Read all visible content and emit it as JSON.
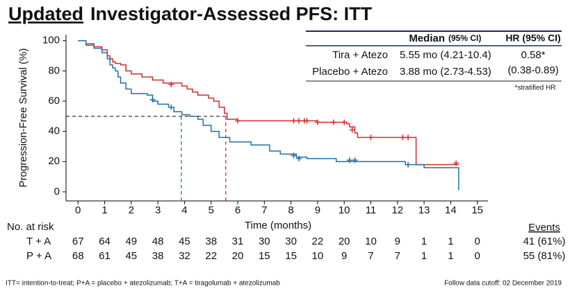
{
  "chart_data": {
    "type": "step",
    "title_emphasis": "Updated",
    "title": "Investigator-Assessed PFS: ITT",
    "ylabel": "Progression-Free Survival (%)",
    "xlabel": "Time (months)",
    "xlim": [
      -0.45,
      15.4
    ],
    "ylim": [
      -6,
      104
    ],
    "xticks": [
      0,
      1,
      2,
      3,
      4,
      5,
      6,
      7,
      8,
      9,
      10,
      11,
      12,
      13,
      14,
      15
    ],
    "yticks": [
      0,
      20,
      40,
      60,
      80,
      100
    ],
    "median_y": 50,
    "series": [
      {
        "name": "Tira + Atezo",
        "color": "#d42b2b",
        "median": 5.55,
        "median_text": "5.55 mo (4.21-10.4)",
        "hr": "0.58*",
        "hr_ci": "(0.38-0.89)",
        "risk_label": "T + A",
        "events": "41 (61%)",
        "at_risk": [
          67,
          64,
          49,
          48,
          45,
          38,
          31,
          30,
          30,
          22,
          20,
          10,
          9,
          1,
          1,
          0
        ],
        "x": [
          0,
          0.3,
          0.6,
          0.9,
          1.1,
          1.2,
          1.3,
          1.4,
          1.6,
          1.8,
          2.0,
          2.4,
          2.8,
          3.2,
          3.9,
          4.1,
          4.3,
          4.5,
          4.9,
          5.1,
          5.3,
          5.5,
          5.6,
          6.0,
          9.0,
          10.1,
          10.2,
          10.4,
          10.5,
          12.7,
          14.3
        ],
        "values": [
          100,
          98,
          96,
          94,
          90,
          88,
          86,
          85,
          84,
          80,
          78,
          76,
          74,
          72,
          70,
          68,
          66,
          64,
          62,
          60,
          56,
          52,
          48,
          47,
          46,
          45,
          43,
          39,
          36,
          18,
          18
        ],
        "censor_x": [
          3.5,
          6.0,
          8.1,
          8.3,
          8.5,
          8.6,
          9.0,
          9.6,
          10.0,
          10.3,
          11.0,
          12.2,
          12.4,
          14.2
        ],
        "censor_y": [
          71,
          47,
          47,
          47,
          47,
          47,
          46,
          46,
          46,
          41,
          36,
          36,
          36,
          19
        ]
      },
      {
        "name": "Placebo + Atezo",
        "color": "#1f6fa8",
        "median": 3.88,
        "median_text": "3.88 mo (2.73-4.53)",
        "risk_label": "P + A",
        "events": "55 (81%)",
        "at_risk": [
          68,
          61,
          45,
          38,
          32,
          22,
          20,
          15,
          15,
          10,
          9,
          7,
          7,
          1,
          1,
          0
        ],
        "x": [
          0,
          0.3,
          0.6,
          0.9,
          1.1,
          1.2,
          1.3,
          1.4,
          1.5,
          1.6,
          1.8,
          2.0,
          2.6,
          2.8,
          3.0,
          3.4,
          3.6,
          3.9,
          4.2,
          4.5,
          4.7,
          5.0,
          5.3,
          5.7,
          6.5,
          7.2,
          7.6,
          8.2,
          8.6,
          9.7,
          12.3,
          13.0,
          14.3
        ],
        "values": [
          100,
          97,
          95,
          92,
          88,
          84,
          82,
          80,
          76,
          72,
          68,
          65,
          64,
          60,
          58,
          56,
          53,
          51,
          50,
          48,
          44,
          40,
          36,
          33,
          31,
          27,
          25,
          23,
          22,
          20,
          18,
          16,
          1
        ],
        "censor_x": [
          2.8,
          3.5,
          8.1,
          8.3,
          10.2,
          10.4,
          12.4
        ],
        "censor_y": [
          61,
          56,
          24,
          22,
          21,
          21,
          18
        ]
      }
    ],
    "table_header_median": "Median",
    "table_header_median_ci": "(95% CI)",
    "table_header_hr": "HR (95% CI)",
    "hr_note": "*stratified HR",
    "risk_title": "No. at risk",
    "events_title": "Events",
    "footnote": "ITT= intention-to-treat; P+A = placebo + atezolizumab; T+A = tiragolumab + atezolizumab",
    "cutoff": "Follow data cutoff: 02 December 2019"
  }
}
